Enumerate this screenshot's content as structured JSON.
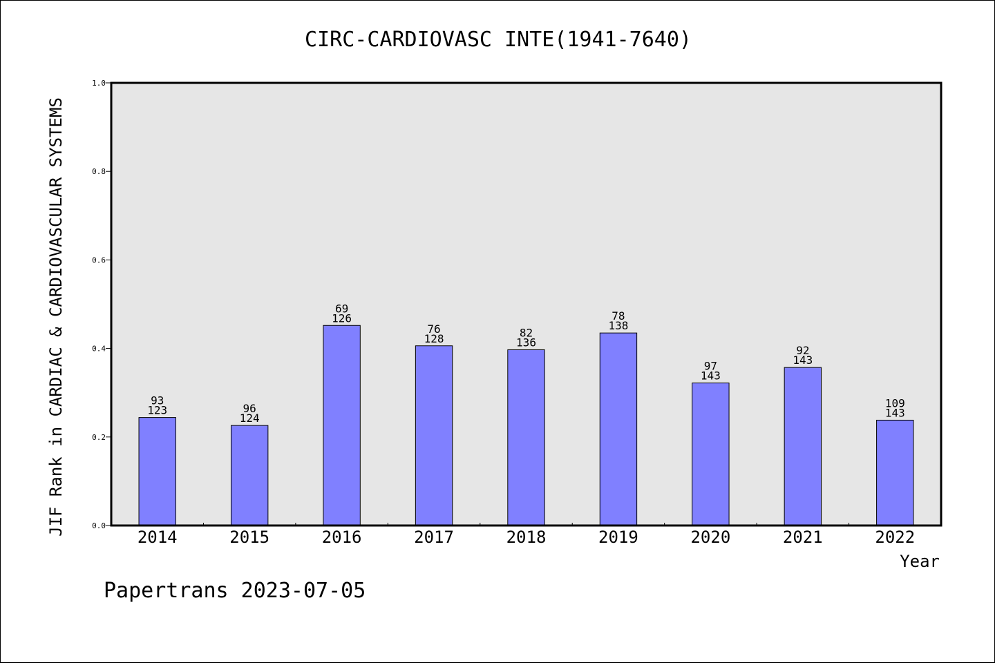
{
  "chart_data": {
    "type": "bar",
    "title": "CIRC-CARDIOVASC INTE(1941-7640)",
    "xlabel": "Year",
    "ylabel": "JIF Rank in CARDIAC & CARDIOVASCULAR SYSTEMS",
    "ylim": [
      0.0,
      1.0
    ],
    "yticks": [
      "0.0",
      "0.2",
      "0.4",
      "0.6",
      "0.8",
      "1.0"
    ],
    "grid": false,
    "colors": {
      "bar": "#8080ff",
      "plot_background": "#e6e6e6"
    },
    "categories": [
      "2014",
      "2015",
      "2016",
      "2017",
      "2018",
      "2019",
      "2020",
      "2021",
      "2022"
    ],
    "values": [
      0.244,
      0.226,
      0.452,
      0.406,
      0.397,
      0.435,
      0.322,
      0.357,
      0.238
    ],
    "labels": [
      [
        "93",
        "123"
      ],
      [
        "96",
        "124"
      ],
      [
        "69",
        "126"
      ],
      [
        "76",
        "128"
      ],
      [
        "82",
        "136"
      ],
      [
        "78",
        "138"
      ],
      [
        "97",
        "143"
      ],
      [
        "92",
        "143"
      ],
      [
        "109",
        "143"
      ]
    ]
  },
  "footer": "Papertrans 2023-07-05"
}
